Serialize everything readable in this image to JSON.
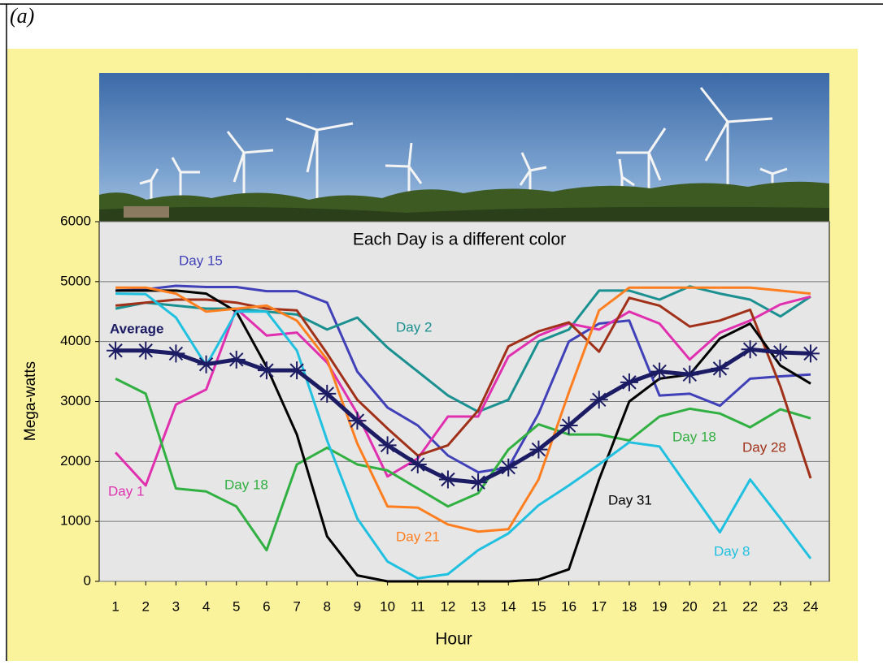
{
  "figure_label": "(a)",
  "chart_data": {
    "type": "line",
    "title": "Each Day is a different color",
    "x_label": "Hour",
    "y_label": "Mega-watts",
    "x": [
      1,
      2,
      3,
      4,
      5,
      6,
      7,
      8,
      9,
      10,
      11,
      12,
      13,
      14,
      15,
      16,
      17,
      18,
      19,
      20,
      21,
      22,
      23,
      24
    ],
    "xlim": [
      0.46,
      24.62
    ],
    "xticks": [
      1,
      2,
      3,
      4,
      5,
      6,
      7,
      8,
      9,
      10,
      11,
      12,
      13,
      14,
      15,
      16,
      17,
      18,
      19,
      20,
      21,
      22,
      23,
      24
    ],
    "ylim": [
      0,
      6000
    ],
    "yticks": [
      0,
      1000,
      2000,
      3000,
      4000,
      5000,
      6000
    ],
    "grid": true,
    "series": [
      {
        "name": "Day 15",
        "color": "#4040b8",
        "values": [
          4850,
          4870,
          4930,
          4910,
          4910,
          4840,
          4840,
          4650,
          3500,
          2900,
          2600,
          2100,
          1820,
          1900,
          2800,
          4000,
          4300,
          4350,
          3100,
          3130,
          2930,
          3380,
          3420,
          3450
        ]
      },
      {
        "name": "Day 2",
        "color": "#1a9090",
        "values": [
          4550,
          4650,
          4600,
          4550,
          4550,
          4500,
          4450,
          4200,
          4400,
          3900,
          3500,
          3100,
          2830,
          3030,
          4000,
          4200,
          4850,
          4850,
          4700,
          4920,
          4800,
          4700,
          4420,
          4750
        ]
      },
      {
        "name": "Day 1",
        "color": "#e030b0",
        "values": [
          2150,
          1600,
          2950,
          3200,
          4550,
          4100,
          4150,
          3650,
          2800,
          1750,
          2050,
          2750,
          2750,
          3750,
          4100,
          4300,
          4200,
          4500,
          4300,
          3700,
          4150,
          4350,
          4620,
          4750
        ]
      },
      {
        "name": "Day 18",
        "color": "#30b040",
        "values": [
          3380,
          3130,
          1550,
          1500,
          1250,
          520,
          1950,
          2230,
          1950,
          1850,
          1550,
          1250,
          1470,
          2200,
          2620,
          2450,
          2450,
          2350,
          2750,
          2880,
          2800,
          2570,
          2870,
          2720
        ]
      },
      {
        "name": "Day 28",
        "color": "#a03018",
        "values": [
          4600,
          4650,
          4700,
          4700,
          4650,
          4550,
          4520,
          3800,
          3030,
          2550,
          2100,
          2270,
          2850,
          3920,
          4170,
          4320,
          3830,
          4730,
          4600,
          4250,
          4350,
          4530,
          3250,
          1720
        ]
      },
      {
        "name": "Day 31",
        "color": "#000000",
        "values": [
          4850,
          4850,
          4850,
          4800,
          4500,
          3580,
          2450,
          750,
          100,
          0,
          0,
          0,
          0,
          0,
          30,
          200,
          1700,
          3000,
          3380,
          3450,
          4050,
          4300,
          3600,
          3300
        ]
      },
      {
        "name": "Day 21",
        "color": "#ff7f20",
        "values": [
          4900,
          4900,
          4800,
          4500,
          4550,
          4600,
          4350,
          3700,
          2300,
          1250,
          1230,
          950,
          830,
          870,
          1700,
          3150,
          4520,
          4900,
          4900,
          4900,
          4900,
          4900,
          4850,
          4800
        ]
      },
      {
        "name": "Day 8",
        "color": "#20c0e0",
        "values": [
          4800,
          4790,
          4400,
          3600,
          4500,
          4500,
          3850,
          2350,
          1050,
          330,
          50,
          120,
          520,
          800,
          1270,
          1600,
          1950,
          2320,
          2250,
          1530,
          820,
          1700,
          1050,
          380
        ]
      },
      {
        "name": "Average",
        "color": "#1c1c64",
        "values": [
          3850,
          3850,
          3800,
          3620,
          3700,
          3520,
          3520,
          3130,
          2680,
          2270,
          1950,
          1700,
          1650,
          1900,
          2200,
          2600,
          3030,
          3320,
          3500,
          3450,
          3550,
          3870,
          3820,
          3800
        ]
      }
    ]
  }
}
